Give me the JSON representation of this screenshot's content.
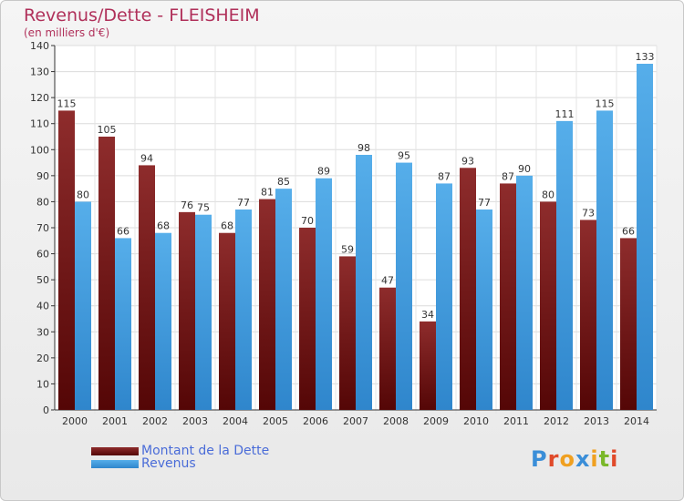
{
  "title": "Revenus/Dette - FLEISHEIM",
  "subtitle": "(en milliers d'€)",
  "legend": [
    {
      "label": "Montant de la Dette",
      "color": "#6e1a1a"
    },
    {
      "label": "Revenus",
      "color": "#4aa3e6"
    }
  ],
  "logo": {
    "letters": [
      "P",
      "r",
      "o",
      "x",
      "i",
      "t",
      "i"
    ],
    "colors": [
      "#3a8ed8",
      "#e04a2a",
      "#f0a020",
      "#3a8ed8",
      "#f0a020",
      "#7ab82a",
      "#e04a2a"
    ]
  },
  "chart_data": {
    "type": "bar",
    "title": "Revenus/Dette - FLEISHEIM",
    "subtitle": "(en milliers d'€)",
    "categories": [
      "2000",
      "2001",
      "2002",
      "2003",
      "2004",
      "2005",
      "2006",
      "2007",
      "2008",
      "2009",
      "2010",
      "2011",
      "2012",
      "2013",
      "2014"
    ],
    "series": [
      {
        "name": "Montant de la Dette",
        "values": [
          115,
          105,
          94,
          76,
          68,
          81,
          70,
          59,
          47,
          34,
          93,
          87,
          80,
          73,
          66
        ]
      },
      {
        "name": "Revenus",
        "values": [
          80,
          66,
          68,
          75,
          77,
          85,
          89,
          98,
          95,
          87,
          77,
          90,
          111,
          115,
          133
        ]
      }
    ],
    "ylim": [
      0,
      140
    ],
    "yticks": [
      0,
      10,
      20,
      30,
      40,
      50,
      60,
      70,
      80,
      90,
      100,
      110,
      120,
      130,
      140
    ],
    "grid": true,
    "legend_position": "bottom-left"
  }
}
